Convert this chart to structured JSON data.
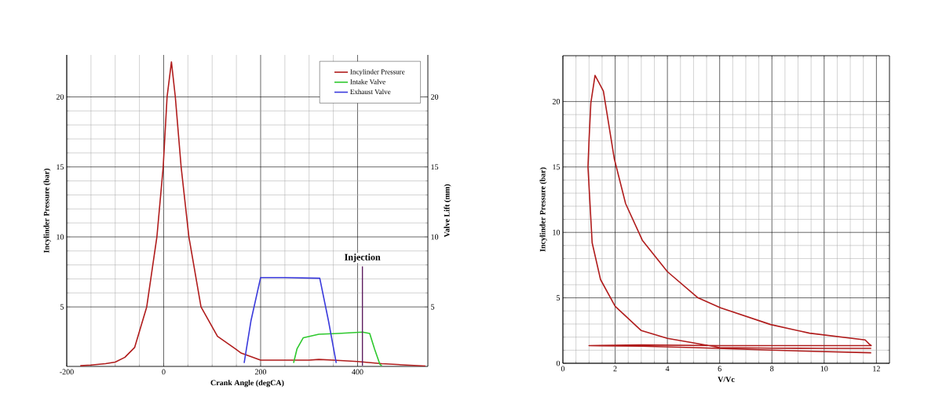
{
  "chart_data": [
    {
      "type": "line",
      "xlabel": "Crank Angle (degCA)",
      "ylabel": "Incylinder Pressure (bar)",
      "y2label": "Valve Lift (mm)",
      "xlim": [
        -200,
        545
      ],
      "ylim": [
        0.75,
        23
      ],
      "y2lim": [
        0.75,
        23
      ],
      "xticks": [
        -200,
        0,
        200,
        400
      ],
      "yticks": [
        5,
        10,
        15,
        20
      ],
      "y2ticks": [
        5,
        10,
        15,
        20
      ],
      "grid": true,
      "legend": "top right",
      "series": [
        {
          "name": "Incylinder Pressure",
          "color": "#b01c1c",
          "x": [
            -172,
            -150,
            -120,
            -100,
            -80,
            -60,
            -35,
            -14,
            -1,
            7,
            16,
            24,
            36,
            52,
            77,
            111,
            148,
            160,
            200,
            250,
            300,
            320,
            350,
            400,
            450,
            500,
            540
          ],
          "values": [
            0.8,
            0.85,
            0.95,
            1.06,
            1.4,
            2.1,
            5,
            10,
            15,
            20,
            22.5,
            20,
            15,
            10,
            5,
            2.9,
            2.0,
            1.7,
            1.2,
            1.2,
            1.2,
            1.25,
            1.2,
            1.1,
            0.95,
            0.85,
            0.78
          ]
        },
        {
          "name": "Intake Valve",
          "color": "#2ec82e",
          "axis": "y2",
          "x": [
            268,
            275,
            288,
            320,
            360,
            410,
            425,
            435,
            446,
            450
          ],
          "values": [
            1.0,
            2.0,
            2.8,
            3.05,
            3.1,
            3.2,
            3.1,
            2.0,
            0.9,
            0.8
          ]
        },
        {
          "name": "Exhaust Valve",
          "color": "#3a3adc",
          "axis": "y2",
          "x": [
            166,
            180,
            200,
            250,
            322,
            340,
            356
          ],
          "values": [
            1.0,
            4.0,
            7.1,
            7.1,
            7.05,
            4.0,
            1.0
          ]
        },
        {
          "color": "#5b1a5e",
          "axis": "y2",
          "x": [
            410,
            410
          ],
          "values": [
            0.8,
            7.9
          ]
        }
      ],
      "annotations": [
        {
          "text": "Injection",
          "x": 410,
          "y": 7.9
        }
      ]
    },
    {
      "type": "line",
      "xlabel": "V/Vc",
      "ylabel": "Incylinder Pressure (bar)",
      "xlim": [
        0,
        12.5
      ],
      "ylim": [
        0,
        23.5
      ],
      "xticks": [
        0,
        2,
        4,
        6,
        8,
        10,
        12
      ],
      "yticks": [
        0,
        5,
        10,
        15,
        20
      ],
      "grid": true,
      "series": [
        {
          "color": "#b01c1c",
          "x": [
            11.8,
            10,
            8,
            6,
            5,
            4,
            3,
            2,
            1.44,
            1.12,
            0.96,
            1.0,
            1.07,
            1.23,
            1.55,
            1.97,
            2.4,
            3.04,
            4,
            5.17,
            6.03,
            7.95,
            9.44,
            11.57,
            11.73,
            11.8,
            9,
            6,
            3,
            1.0,
            3,
            5,
            8,
            11.8
          ],
          "values": [
            1.14,
            1.14,
            1.15,
            1.2,
            1.56,
            1.9,
            2.5,
            4.35,
            6.4,
            9.2,
            15,
            17,
            19.9,
            22,
            20.8,
            15.6,
            12.2,
            9.4,
            7.0,
            5.0,
            4.24,
            2.96,
            2.3,
            1.78,
            1.46,
            1.35,
            1.35,
            1.35,
            1.4,
            1.35,
            1.3,
            1.2,
            1.0,
            0.8
          ]
        }
      ]
    }
  ]
}
